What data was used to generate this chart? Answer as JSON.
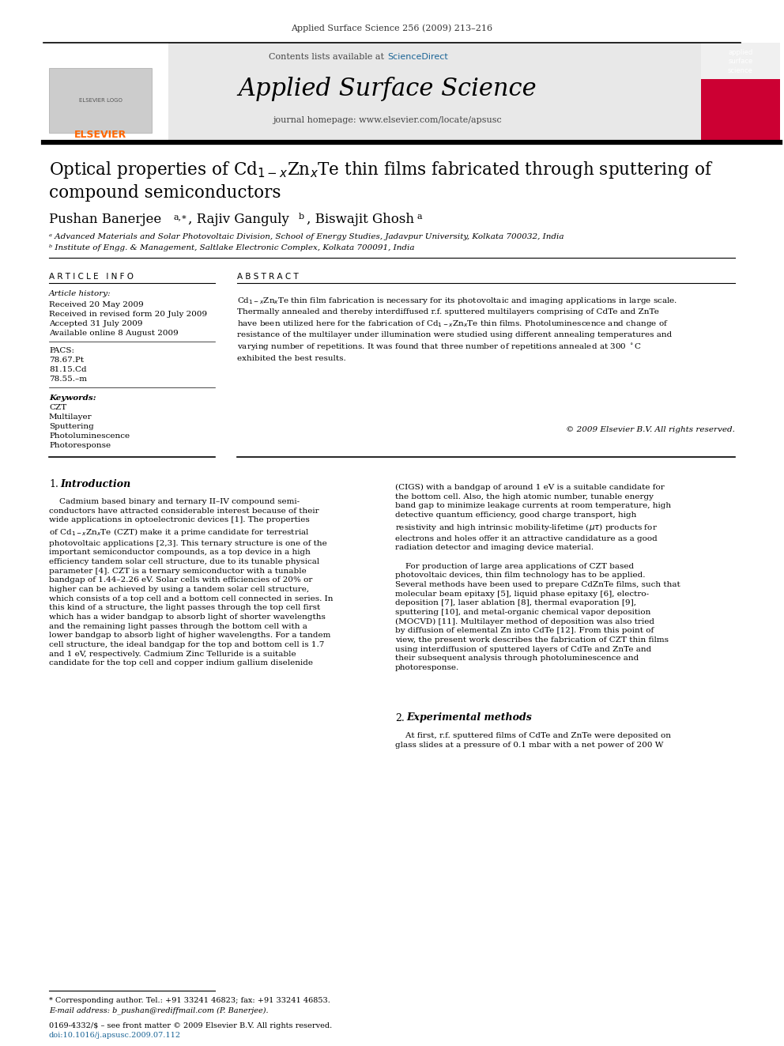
{
  "journal_line": "Applied Surface Science 256 (2009) 213–216",
  "journal_name": "Applied Surface Science",
  "contents_line": "Contents lists available at ScienceDirect",
  "homepage_line": "journal homepage: www.elsevier.com/locate/apsusc",
  "sciencedirect_color": "#1a6496",
  "affil_a": "ᵃ Advanced Materials and Solar Photovoltaic Division, School of Energy Studies, Jadavpur University, Kolkata 700032, India",
  "affil_b": "ᵇ Institute of Engg. & Management, Saltlake Electronic Complex, Kolkata 700091, India",
  "article_history_label": "Article history:",
  "received": "Received 20 May 2009",
  "revised": "Received in revised form 20 July 2009",
  "accepted": "Accepted 31 July 2009",
  "available": "Available online 8 August 2009",
  "pacs_label": "PACS:",
  "pacs1": "78.67.Pt",
  "pacs2": "81.15.Cd",
  "pacs3": "78.55.–m",
  "keywords_label": "Keywords:",
  "kw1": "CZT",
  "kw2": "Multilayer",
  "kw3": "Sputtering",
  "kw4": "Photoluminescence",
  "kw5": "Photoresponse",
  "copyright": "© 2009 Elsevier B.V. All rights reserved.",
  "footnote_star": "* Corresponding author. Tel.: +91 33241 46823; fax: +91 33241 46853.",
  "footnote_email": "E-mail address: b_pushan@rediffmail.com (P. Banerjee).",
  "footer_line1": "0169-4332/$ – see front matter © 2009 Elsevier B.V. All rights reserved.",
  "footer_doi": "doi:10.1016/j.apsusc.2009.07.112",
  "bg_color": "#ffffff",
  "blue_color": "#1a6496",
  "elsevier_orange": "#FF6600"
}
